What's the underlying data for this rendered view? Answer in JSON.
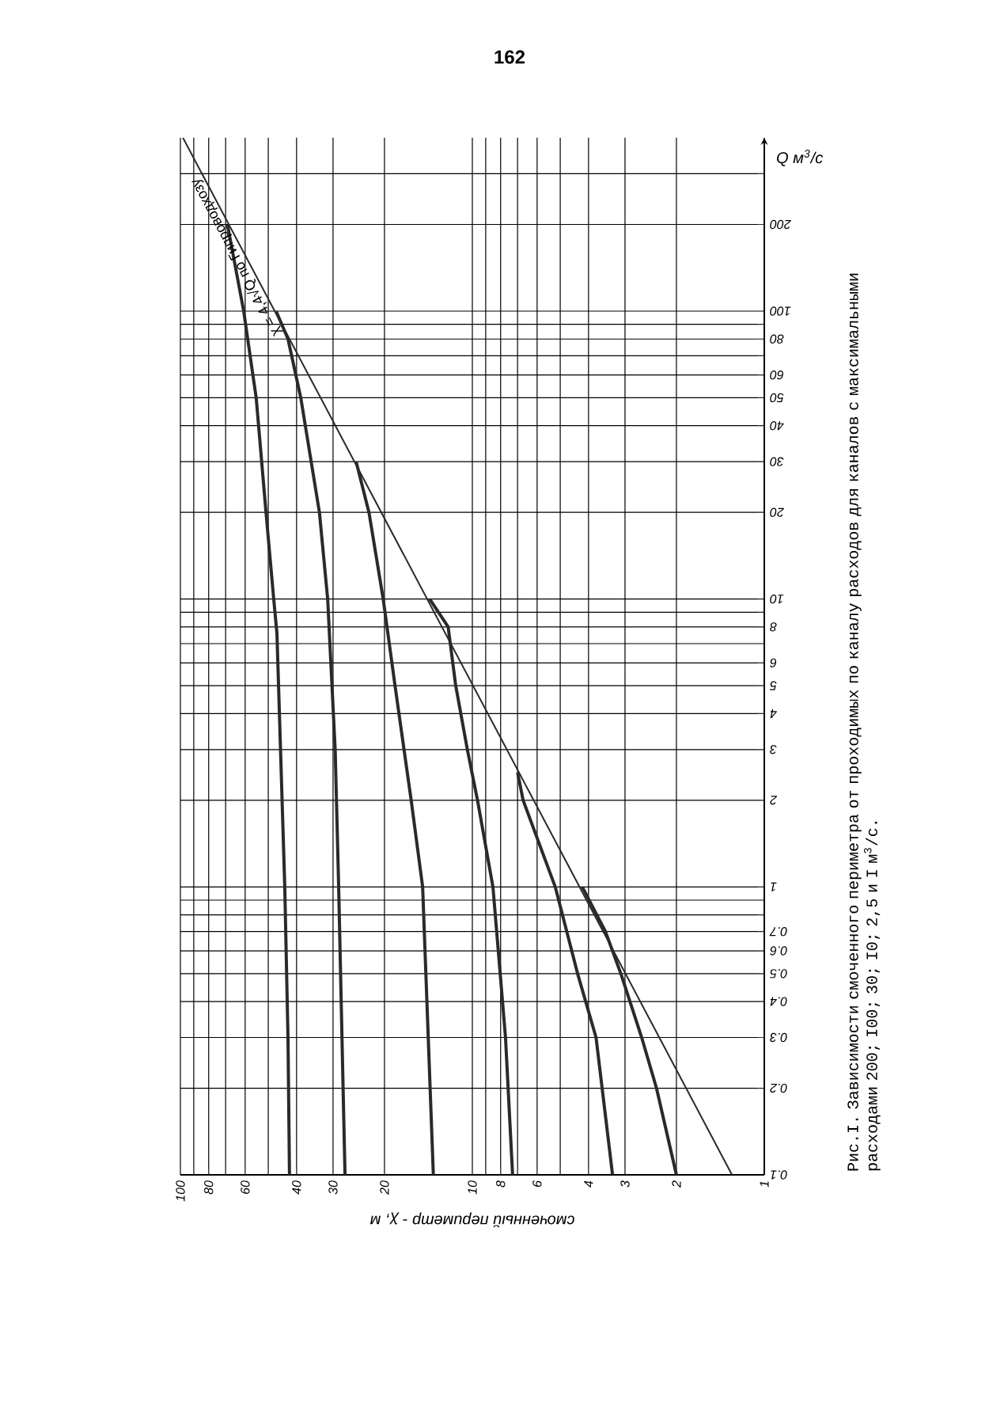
{
  "chart_data": {
    "type": "line",
    "title": "Рис.I. Зависимости смоченного периметра от проходимых по каналу расходов для каналов с максимальными расходами 200; I00; 30; I0; 2,5 и I м$^{3}$/с.",
    "xlabel": "смоченный периметр - χ, м",
    "ylabel": "Q м$^{3}$/с",
    "log": "xy",
    "grid": true,
    "marker": "none",
    "line_style": "solid",
    "xlim": [
      100,
      1
    ],
    "ylim": [
      0.1,
      400
    ],
    "xticks": [
      1,
      2,
      3,
      4,
      {
        "value": 5,
        "label": null
      },
      6,
      {
        "value": 7,
        "label": null
      },
      8,
      {
        "value": 9,
        "label": null
      },
      10,
      20,
      30,
      40,
      {
        "value": 50,
        "label": null
      },
      60,
      {
        "value": 70,
        "label": null
      },
      80,
      {
        "value": 90,
        "label": null
      },
      100
    ],
    "yticks": [
      0.1,
      0.2,
      0.3,
      0.4,
      0.5,
      0.6,
      0.7,
      {
        "value": 0.8,
        "label": null
      },
      {
        "value": 0.9,
        "label": null
      },
      1,
      2,
      3,
      4,
      5,
      6,
      {
        "value": 7,
        "label": null
      },
      8,
      {
        "value": 9,
        "label": null
      },
      10,
      20,
      30,
      40,
      50,
      60,
      {
        "value": 70,
        "label": null
      },
      80,
      {
        "value": 90,
        "label": null
      },
      100,
      200,
      {
        "value": 300,
        "label": null
      }
    ],
    "series": [
      {
        "color": "#2a2a2a",
        "x": [
          42.3,
          42.8,
          43.9,
          46.7,
          47.9,
          50.9,
          55,
          60.7,
          69
        ],
        "values": [
          0.1,
          0.3,
          1,
          7.6,
          10,
          20,
          50,
          100,
          200
        ]
      },
      {
        "color": "#2a2a2a",
        "x": [
          27.3,
          28.7,
          29.5,
          31.3,
          33.4,
          38.7,
          42.8,
          47
        ],
        "values": [
          0.1,
          1,
          3,
          10,
          20,
          50,
          80,
          100
        ]
      },
      {
        "color": "#2a2a2a",
        "x": [
          13.6,
          14.8,
          16.2,
          18.4,
          20.2,
          22.6,
          25
        ],
        "values": [
          0.1,
          1,
          2,
          5,
          10,
          20,
          30
        ]
      },
      {
        "color": "#2a2a2a",
        "x": [
          7.28,
          7.7,
          8.5,
          9.6,
          10.4,
          11.4,
          12.1,
          14
        ],
        "values": [
          0.1,
          0.3,
          1,
          2,
          3,
          5,
          8,
          10
        ]
      },
      {
        "color": "#2a2a2a",
        "x": [
          3.31,
          3.77,
          4.36,
          5.2,
          6.7,
          7.0
        ],
        "values": [
          0.1,
          0.3,
          0.5,
          1,
          2,
          2.5
        ]
      },
      {
        "color": "#2a2a2a",
        "x": [
          2.0,
          2.34,
          2.63,
          3.1,
          3.5,
          4.2
        ],
        "values": [
          0.1,
          0.2,
          0.3,
          0.5,
          0.7,
          1
        ]
      },
      {
        "color": "#2a2a2a",
        "x": [
          1.29,
          98
        ],
        "values": [
          0.1,
          400
        ]
      }
    ],
    "annotations": [
      {
        "text": "χ = 4,4√Q по Гипроводхозу",
        "x": 60,
        "y": 160
      },
      "162"
    ]
  }
}
